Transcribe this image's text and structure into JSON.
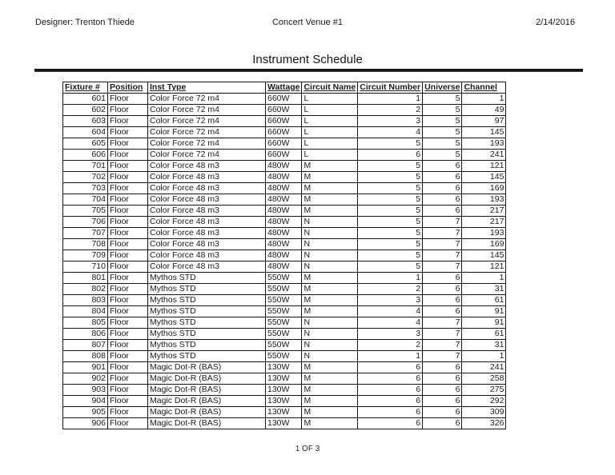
{
  "colors": {
    "background": "#ffffff",
    "ink": "#1b1b1b",
    "table_border": "#161616"
  },
  "header": {
    "designer": "Designer: Trenton Thiede",
    "venue": "Concert Venue #1",
    "date": "2/14/2016"
  },
  "title": "Instrument Schedule",
  "footer": {
    "page_indicator": "1 OF 3"
  },
  "table": {
    "columns": [
      "Fixture #",
      "Position",
      "Inst Type",
      "Wattage",
      "Circuit Name",
      "Circuit Number",
      "Universe",
      "Channel"
    ],
    "rows": [
      [
        "601",
        "Floor",
        "Color Force 72 m4",
        "660W",
        "L",
        "1",
        "5",
        "1"
      ],
      [
        "602",
        "Floor",
        "Color Force 72 m4",
        "660W",
        "L",
        "2",
        "5",
        "49"
      ],
      [
        "603",
        "Floor",
        "Color Force 72 m4",
        "660W",
        "L",
        "3",
        "5",
        "97"
      ],
      [
        "604",
        "Floor",
        "Color Force 72 m4",
        "660W",
        "L",
        "4",
        "5",
        "145"
      ],
      [
        "605",
        "Floor",
        "Color Force 72 m4",
        "660W",
        "L",
        "5",
        "5",
        "193"
      ],
      [
        "606",
        "Floor",
        "Color Force 72 m4",
        "660W",
        "L",
        "6",
        "5",
        "241"
      ],
      [
        "701",
        "Floor",
        "Color Force 48 m3",
        "480W",
        "M",
        "5",
        "6",
        "121"
      ],
      [
        "702",
        "Floor",
        "Color Force 48 m3",
        "480W",
        "M",
        "5",
        "6",
        "145"
      ],
      [
        "703",
        "Floor",
        "Color Force 48 m3",
        "480W",
        "M",
        "5",
        "6",
        "169"
      ],
      [
        "704",
        "Floor",
        "Color Force 48 m3",
        "480W",
        "M",
        "5",
        "6",
        "193"
      ],
      [
        "705",
        "Floor",
        "Color Force 48 m3",
        "480W",
        "M",
        "5",
        "6",
        "217"
      ],
      [
        "706",
        "Floor",
        "Color Force 48 m3",
        "480W",
        "N",
        "5",
        "7",
        "217"
      ],
      [
        "707",
        "Floor",
        "Color Force 48 m3",
        "480W",
        "N",
        "5",
        "7",
        "193"
      ],
      [
        "708",
        "Floor",
        "Color Force 48 m3",
        "480W",
        "N",
        "5",
        "7",
        "169"
      ],
      [
        "709",
        "Floor",
        "Color Force 48 m3",
        "480W",
        "N",
        "5",
        "7",
        "145"
      ],
      [
        "710",
        "Floor",
        "Color Force 48 m3",
        "480W",
        "N",
        "5",
        "7",
        "121"
      ],
      [
        "801",
        "Floor",
        "Mythos STD",
        "550W",
        "M",
        "1",
        "6",
        "1"
      ],
      [
        "802",
        "Floor",
        "Mythos STD",
        "550W",
        "M",
        "2",
        "6",
        "31"
      ],
      [
        "803",
        "Floor",
        "Mythos STD",
        "550W",
        "M",
        "3",
        "6",
        "61"
      ],
      [
        "804",
        "Floor",
        "Mythos STD",
        "550W",
        "M",
        "4",
        "6",
        "91"
      ],
      [
        "805",
        "Floor",
        "Mythos STD",
        "550W",
        "N",
        "4",
        "7",
        "91"
      ],
      [
        "806",
        "Floor",
        "Mythos STD",
        "550W",
        "N",
        "3",
        "7",
        "61"
      ],
      [
        "807",
        "Floor",
        "Mythos STD",
        "550W",
        "N",
        "2",
        "7",
        "31"
      ],
      [
        "808",
        "Floor",
        "Mythos STD",
        "550W",
        "N",
        "1",
        "7",
        "1"
      ],
      [
        "901",
        "Floor",
        "Magic Dot-R (BAS)",
        "130W",
        "M",
        "6",
        "6",
        "241"
      ],
      [
        "902",
        "Floor",
        "Magic Dot-R (BAS)",
        "130W",
        "M",
        "6",
        "6",
        "258"
      ],
      [
        "903",
        "Floor",
        "Magic Dot-R (BAS)",
        "130W",
        "M",
        "6",
        "6",
        "275"
      ],
      [
        "904",
        "Floor",
        "Magic Dot-R (BAS)",
        "130W",
        "M",
        "6",
        "6",
        "292"
      ],
      [
        "905",
        "Floor",
        "Magic Dot-R (BAS)",
        "130W",
        "M",
        "6",
        "6",
        "309"
      ],
      [
        "906",
        "Floor",
        "Magic Dot-R (BAS)",
        "130W",
        "M",
        "6",
        "6",
        "326"
      ]
    ]
  }
}
